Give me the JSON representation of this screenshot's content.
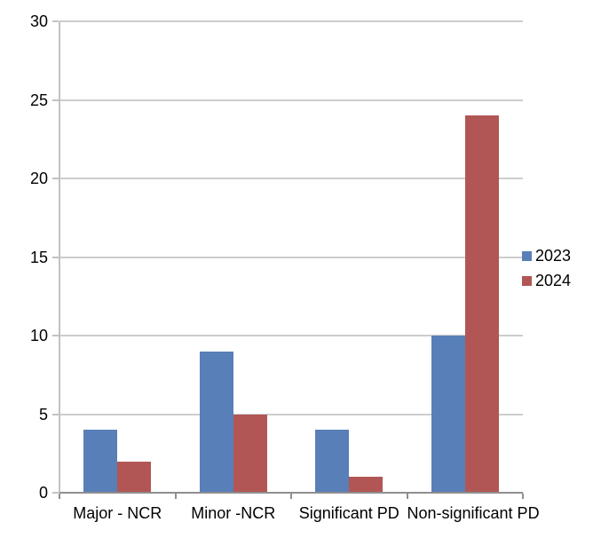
{
  "chart_data": {
    "type": "bar",
    "title": "",
    "categories": [
      "Major - NCR",
      "Minor -NCR",
      "Significant PD",
      "Non-significant PD"
    ],
    "series": [
      {
        "name": "2023",
        "color": "#587FB8",
        "values": [
          4,
          9,
          4,
          10
        ]
      },
      {
        "name": "2024",
        "color": "#B15654",
        "values": [
          2,
          5,
          1,
          24
        ]
      }
    ],
    "xlabel": "",
    "ylabel": "",
    "ylim": [
      0,
      30
    ],
    "yticks": [
      0,
      5,
      10,
      15,
      20,
      25,
      30
    ],
    "grid": "horizontal",
    "legend_position": "right"
  },
  "palette": {
    "background": "#FFFFFF",
    "gridline": "#CDCDCD",
    "y_axis": "#C2C2C2",
    "x_axis": "#8F8F8F",
    "text": "#000000"
  }
}
